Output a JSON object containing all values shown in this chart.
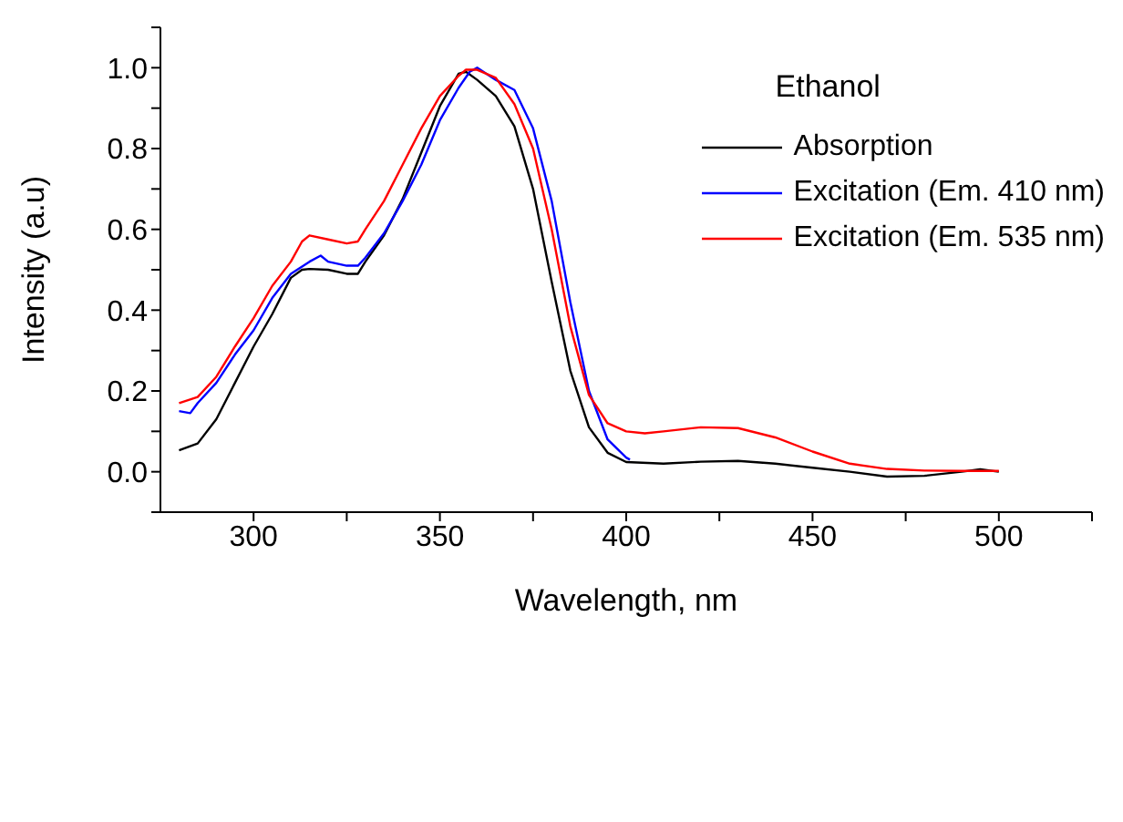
{
  "chart_data": {
    "type": "line",
    "xlabel": "Wavelength, nm",
    "ylabel": "Intensity (a.u)",
    "legend_title": "Ethanol",
    "legend": "top right",
    "marker": "none",
    "line_style": "solid",
    "xlim": [
      275,
      525
    ],
    "xticks": [
      300,
      {
        "value": 325,
        "label": null
      },
      350,
      {
        "value": 375,
        "label": null
      },
      400,
      {
        "value": 425,
        "label": null
      },
      450,
      {
        "value": 475,
        "label": null
      },
      500,
      {
        "value": 525,
        "label": null
      }
    ],
    "ylim": [
      -0.1,
      1.1
    ],
    "yticks": [
      {
        "value": -0.1,
        "label": null
      },
      {
        "value": 0,
        "label": "0.0"
      },
      {
        "value": 0.1,
        "label": null
      },
      0.2,
      {
        "value": 0.3,
        "label": null
      },
      0.4,
      {
        "value": 0.5,
        "label": null
      },
      0.6,
      {
        "value": 0.7,
        "label": null
      },
      0.8,
      {
        "value": 0.9,
        "label": null
      },
      {
        "value": 1,
        "label": "1.0"
      },
      {
        "value": 1.1,
        "label": null
      }
    ],
    "series": [
      {
        "name": "Absorption",
        "color": "#000000",
        "x": [
          280,
          285,
          290,
          295,
          300,
          305,
          310,
          313,
          315,
          320,
          325,
          328,
          330,
          335,
          340,
          345,
          350,
          355,
          357,
          360,
          365,
          370,
          375,
          380,
          385,
          390,
          395,
          400,
          410,
          420,
          430,
          440,
          450,
          460,
          470,
          480,
          490,
          495,
          500
        ],
        "values": [
          0.053,
          0.07,
          0.13,
          0.22,
          0.31,
          0.39,
          0.48,
          0.5,
          0.502,
          0.5,
          0.49,
          0.49,
          0.52,
          0.585,
          0.675,
          0.79,
          0.905,
          0.985,
          0.99,
          0.97,
          0.93,
          0.855,
          0.7,
          0.47,
          0.25,
          0.11,
          0.047,
          0.024,
          0.02,
          0.025,
          0.027,
          0.02,
          0.01,
          0.0,
          -0.012,
          -0.01,
          0.0,
          0.006,
          0.0
        ]
      },
      {
        "name": "Excitation (Em. 410 nm)",
        "color": "#0000ff",
        "x": [
          280,
          283,
          285,
          290,
          295,
          300,
          305,
          310,
          315,
          318,
          320,
          325,
          328,
          330,
          335,
          340,
          345,
          350,
          355,
          358,
          360,
          365,
          370,
          375,
          380,
          385,
          390,
          395,
          400,
          401
        ],
        "values": [
          0.15,
          0.145,
          0.17,
          0.22,
          0.29,
          0.35,
          0.43,
          0.49,
          0.52,
          0.535,
          0.52,
          0.51,
          0.51,
          0.53,
          0.59,
          0.67,
          0.76,
          0.87,
          0.95,
          0.99,
          1.0,
          0.97,
          0.945,
          0.85,
          0.67,
          0.42,
          0.2,
          0.08,
          0.035,
          0.03
        ]
      },
      {
        "name": "Excitation (Em. 535 nm)",
        "color": "#ff0000",
        "x": [
          280,
          285,
          290,
          295,
          300,
          305,
          310,
          313,
          315,
          320,
          325,
          328,
          330,
          335,
          340,
          345,
          350,
          355,
          357,
          360,
          365,
          370,
          375,
          380,
          385,
          390,
          395,
          400,
          405,
          410,
          420,
          430,
          440,
          450,
          460,
          470,
          480,
          490,
          500
        ],
        "values": [
          0.17,
          0.185,
          0.235,
          0.31,
          0.38,
          0.46,
          0.52,
          0.57,
          0.585,
          0.575,
          0.565,
          0.57,
          0.6,
          0.67,
          0.76,
          0.85,
          0.93,
          0.98,
          0.995,
          0.995,
          0.975,
          0.91,
          0.8,
          0.6,
          0.36,
          0.19,
          0.12,
          0.1,
          0.095,
          0.1,
          0.11,
          0.108,
          0.085,
          0.05,
          0.02,
          0.007,
          0.003,
          0.002,
          0.002
        ]
      }
    ]
  }
}
